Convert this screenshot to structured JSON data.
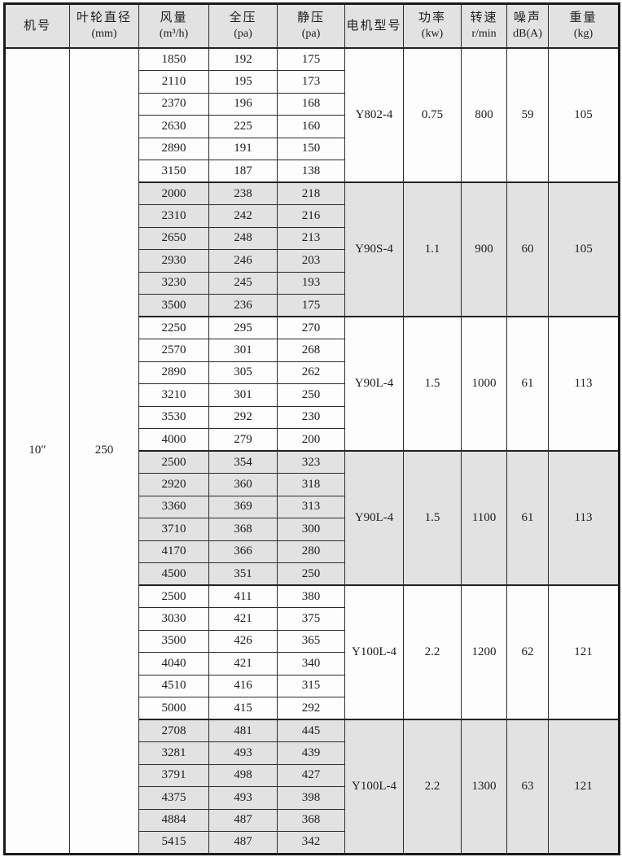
{
  "table": {
    "headers": [
      {
        "line1": "机号",
        "line2": ""
      },
      {
        "line1": "叶轮直径",
        "line2": "(mm)"
      },
      {
        "line1": "风量",
        "line2": "(m³/h)"
      },
      {
        "line1": "全压",
        "line2": "(pa)"
      },
      {
        "line1": "静压",
        "line2": "(pa)"
      },
      {
        "line1": "电机型号",
        "line2": ""
      },
      {
        "line1": "功率",
        "line2": "(kw)"
      },
      {
        "line1": "转速",
        "line2": "r/min"
      },
      {
        "line1": "噪声",
        "line2": "dB(A)"
      },
      {
        "line1": "重量",
        "line2": "(kg)"
      }
    ],
    "machine_no": "10″",
    "impeller_diameter": "250",
    "groups": [
      {
        "motor_model": "Y802-4",
        "power_kw": "0.75",
        "speed_rpm": "800",
        "noise_db": "59",
        "weight_kg": "105",
        "shaded": false,
        "rows": [
          [
            "1850",
            "192",
            "175"
          ],
          [
            "2110",
            "195",
            "173"
          ],
          [
            "2370",
            "196",
            "168"
          ],
          [
            "2630",
            "225",
            "160"
          ],
          [
            "2890",
            "191",
            "150"
          ],
          [
            "3150",
            "187",
            "138"
          ]
        ]
      },
      {
        "motor_model": "Y90S-4",
        "power_kw": "1.1",
        "speed_rpm": "900",
        "noise_db": "60",
        "weight_kg": "105",
        "shaded": true,
        "rows": [
          [
            "2000",
            "238",
            "218"
          ],
          [
            "2310",
            "242",
            "216"
          ],
          [
            "2650",
            "248",
            "213"
          ],
          [
            "2930",
            "246",
            "203"
          ],
          [
            "3230",
            "245",
            "193"
          ],
          [
            "3500",
            "236",
            "175"
          ]
        ]
      },
      {
        "motor_model": "Y90L-4",
        "power_kw": "1.5",
        "speed_rpm": "1000",
        "noise_db": "61",
        "weight_kg": "113",
        "shaded": false,
        "rows": [
          [
            "2250",
            "295",
            "270"
          ],
          [
            "2570",
            "301",
            "268"
          ],
          [
            "2890",
            "305",
            "262"
          ],
          [
            "3210",
            "301",
            "250"
          ],
          [
            "3530",
            "292",
            "230"
          ],
          [
            "4000",
            "279",
            "200"
          ]
        ]
      },
      {
        "motor_model": "Y90L-4",
        "power_kw": "1.5",
        "speed_rpm": "1100",
        "noise_db": "61",
        "weight_kg": "113",
        "shaded": true,
        "rows": [
          [
            "2500",
            "354",
            "323"
          ],
          [
            "2920",
            "360",
            "318"
          ],
          [
            "3360",
            "369",
            "313"
          ],
          [
            "3710",
            "368",
            "300"
          ],
          [
            "4170",
            "366",
            "280"
          ],
          [
            "4500",
            "351",
            "250"
          ]
        ]
      },
      {
        "motor_model": "Y100L-4",
        "power_kw": "2.2",
        "speed_rpm": "1200",
        "noise_db": "62",
        "weight_kg": "121",
        "shaded": false,
        "rows": [
          [
            "2500",
            "411",
            "380"
          ],
          [
            "3030",
            "421",
            "375"
          ],
          [
            "3500",
            "426",
            "365"
          ],
          [
            "4040",
            "421",
            "340"
          ],
          [
            "4510",
            "416",
            "315"
          ],
          [
            "5000",
            "415",
            "292"
          ]
        ]
      },
      {
        "motor_model": "Y100L-4",
        "power_kw": "2.2",
        "speed_rpm": "1300",
        "noise_db": "63",
        "weight_kg": "121",
        "shaded": true,
        "rows": [
          [
            "2708",
            "481",
            "445"
          ],
          [
            "3281",
            "493",
            "439"
          ],
          [
            "3791",
            "498",
            "427"
          ],
          [
            "4375",
            "493",
            "398"
          ],
          [
            "4884",
            "487",
            "368"
          ],
          [
            "5415",
            "487",
            "342"
          ]
        ]
      }
    ]
  },
  "colors": {
    "shaded_bg": "#e2e2e2",
    "border": "#2b2b2b",
    "outer_border": "#1a1a1a",
    "text": "#1c1c1c"
  }
}
